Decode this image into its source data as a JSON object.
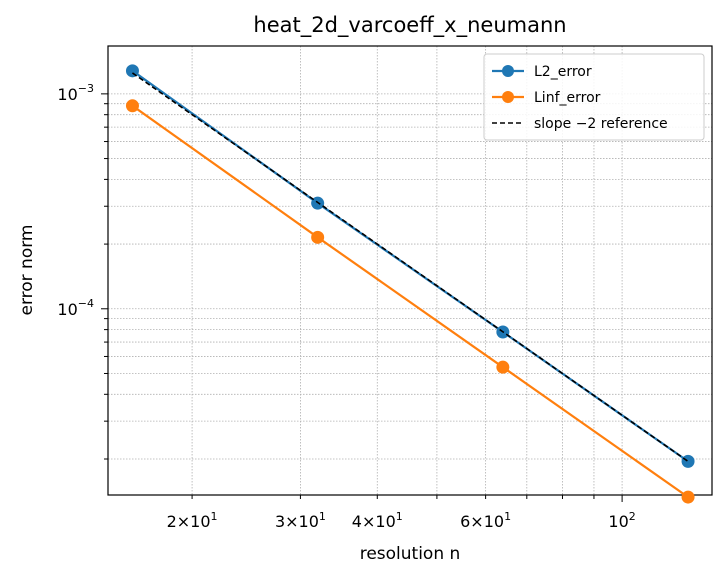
{
  "chart_data": {
    "type": "line",
    "title": "heat_2d_varcoeff_x_neumann",
    "xlabel": "resolution n",
    "ylabel": "error norm",
    "xscale": "log",
    "yscale": "log",
    "xlim": [
      14.6,
      140
    ],
    "ylim": [
      1.36e-05,
      0.00167
    ],
    "grid": true,
    "legend_position": "top-right",
    "x": [
      16,
      32,
      64,
      128
    ],
    "series": [
      {
        "name": "L2_error",
        "color": "#1f77b4",
        "values": [
          0.00128,
          0.00031,
          7.8e-05,
          1.95e-05
        ],
        "marker": "circle",
        "style": "solid"
      },
      {
        "name": "Linf_error",
        "color": "#ff7f0e",
        "values": [
          0.00088,
          0.000215,
          5.35e-05,
          1.33e-05
        ],
        "marker": "circle",
        "style": "solid"
      },
      {
        "name": "slope −2 reference",
        "color": "#000000",
        "values": [
          0.00125,
          0.0003125,
          7.8125e-05,
          1.95e-05
        ],
        "marker": "none",
        "style": "dashed"
      }
    ],
    "x_ticks": [
      {
        "value": 20,
        "mantissa": "2",
        "exp": "1"
      },
      {
        "value": 30,
        "mantissa": "3",
        "exp": "1"
      },
      {
        "value": 40,
        "mantissa": "4",
        "exp": "1"
      },
      {
        "value": 60,
        "mantissa": "6",
        "exp": "1"
      },
      {
        "value": 100,
        "mantissa": "",
        "exp": "2"
      }
    ],
    "y_ticks": [
      {
        "value": 0.001,
        "exp": "−3"
      },
      {
        "value": 0.0001,
        "exp": "−4"
      }
    ]
  }
}
